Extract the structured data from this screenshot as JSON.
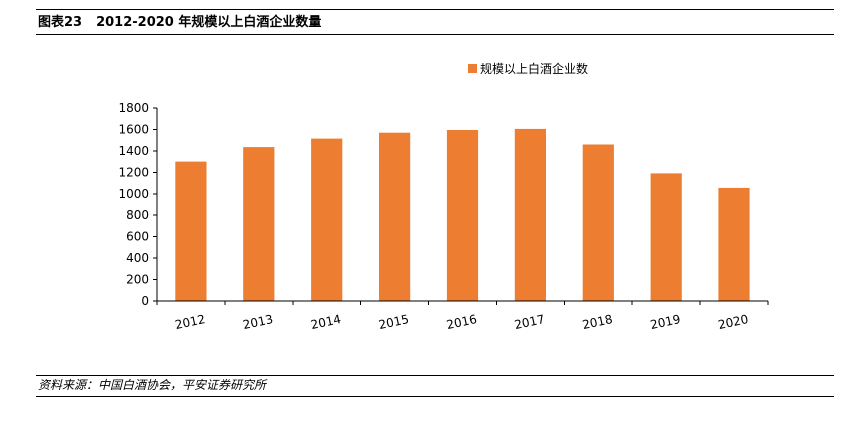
{
  "header": {
    "figure_label": "图表23",
    "title": "2012-2020 年规模以上白酒企业数量"
  },
  "source": "资料来源：中国白酒协会，平安证券研究所",
  "colors": {
    "bar": "#ED7D31",
    "axis": "#000000"
  },
  "chart_data": {
    "type": "bar",
    "categories": [
      "2012",
      "2013",
      "2014",
      "2015",
      "2016",
      "2017",
      "2018",
      "2019",
      "2020"
    ],
    "series": [
      {
        "name": "规模以上白酒企业数",
        "values": [
          1300,
          1435,
          1515,
          1570,
          1595,
          1605,
          1460,
          1190,
          1055
        ]
      }
    ],
    "ylim": [
      0,
      1800
    ],
    "yticks": [
      0,
      200,
      400,
      600,
      800,
      1000,
      1200,
      1400,
      1600,
      1800
    ],
    "title": "",
    "xlabel": "",
    "ylabel": "",
    "legend": "top",
    "grid": false
  }
}
